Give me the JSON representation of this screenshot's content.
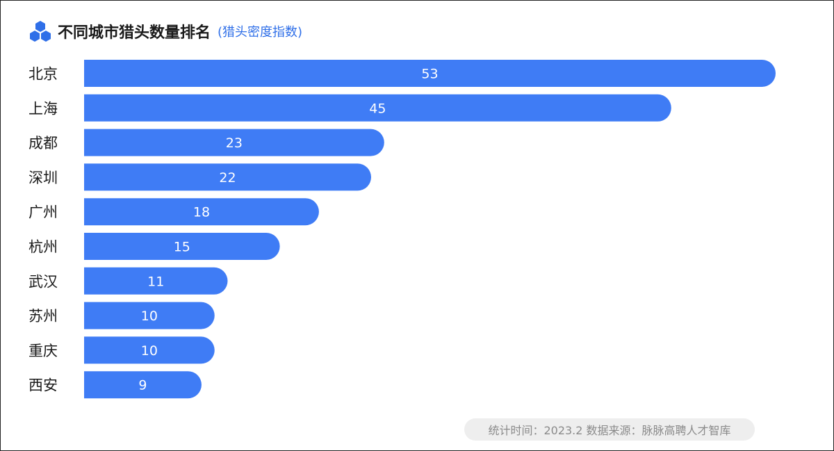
{
  "header": {
    "title": "不同城市猎头数量排名",
    "subtitle": "(猎头密度指数)"
  },
  "footer": {
    "text": "统计时间：2023.2  数据来源：脉脉高聘人才智库"
  },
  "colors": {
    "bar": "#3f7cf5",
    "bar_label": "#ffffff",
    "category_label": "#1a1a1a",
    "accent": "#2f6fe8"
  },
  "chart_data": {
    "type": "bar",
    "orientation": "horizontal",
    "title": "不同城市猎头数量排名",
    "subtitle": "(猎头密度指数)",
    "categories": [
      "北京",
      "上海",
      "成都",
      "深圳",
      "广州",
      "杭州",
      "武汉",
      "苏州",
      "重庆",
      "西安"
    ],
    "values": [
      53,
      45,
      23,
      22,
      18,
      15,
      11,
      10,
      10,
      9
    ],
    "xlabel": "",
    "ylabel": "",
    "grid": false,
    "legend": "none",
    "data_labels": true
  }
}
